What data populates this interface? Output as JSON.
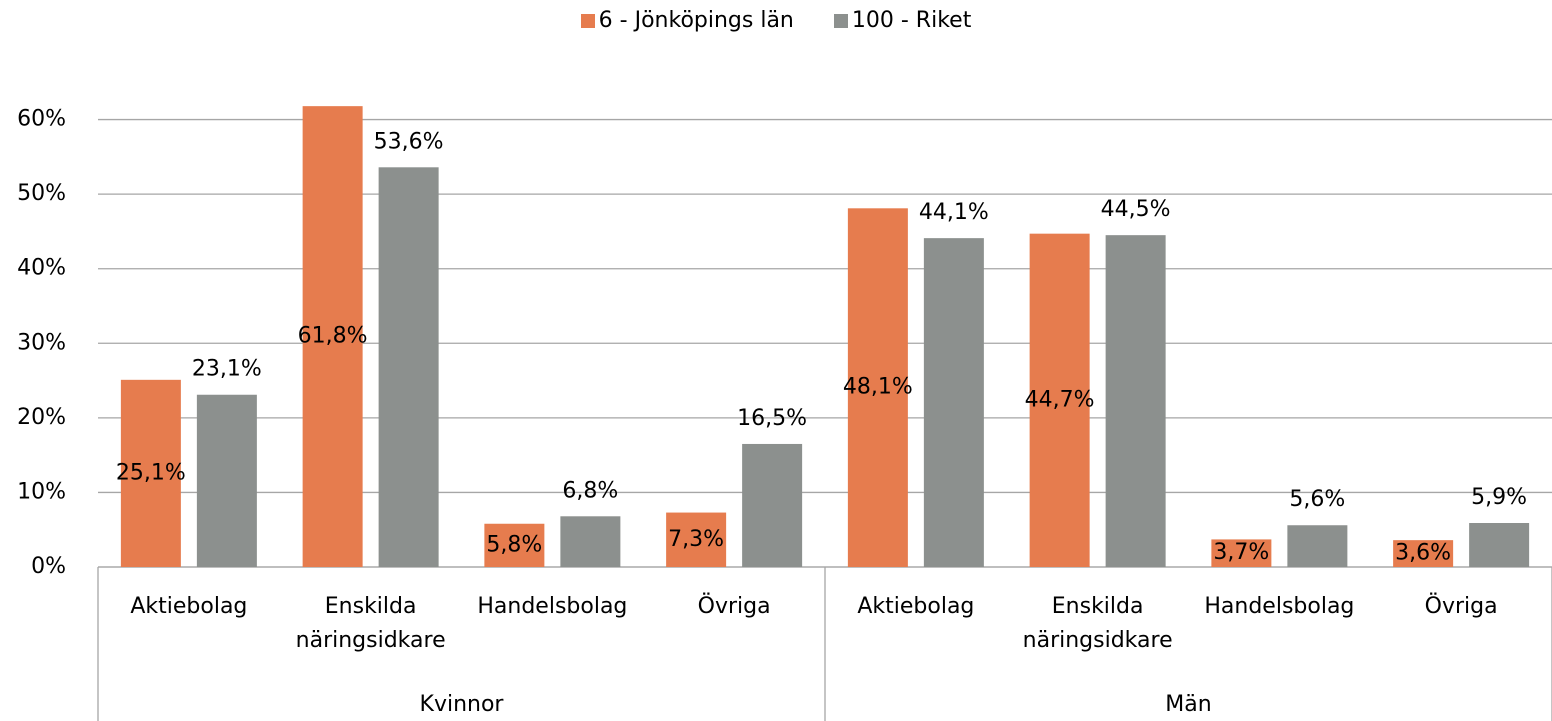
{
  "chart_data": {
    "type": "bar",
    "groups": [
      "Kvinnor",
      "Män"
    ],
    "categories": [
      "Aktiebolag",
      "Enskilda näringsidkare",
      "Handelsbolag",
      "Övriga",
      "Aktiebolag",
      "Enskilda näringsidkare",
      "Handelsbolag",
      "Övriga"
    ],
    "series": [
      {
        "name": "6 - Jönköpings län",
        "color": "#e67c4e",
        "values": [
          25.1,
          61.8,
          5.8,
          7.3,
          48.1,
          44.7,
          3.7,
          3.6
        ],
        "value_labels": [
          "25,1%",
          "61,8%",
          "5,8%",
          "7,3%",
          "48,1%",
          "44,7%",
          "3,7%",
          "3,6%"
        ]
      },
      {
        "name": "100 - Riket",
        "color": "#8c908e",
        "values": [
          23.1,
          53.6,
          6.8,
          16.5,
          44.1,
          44.5,
          5.6,
          5.9
        ],
        "value_labels": [
          "23,1%",
          "53,6%",
          "6,8%",
          "16,5%",
          "44,1%",
          "44,5%",
          "5,6%",
          "5,9%"
        ]
      }
    ],
    "ylim": [
      0,
      70
    ],
    "yticks": [
      {
        "value": 0,
        "label": "0%"
      },
      {
        "value": 10,
        "label": "10%"
      },
      {
        "value": 20,
        "label": "20%"
      },
      {
        "value": 30,
        "label": "30%"
      },
      {
        "value": 40,
        "label": "40%"
      },
      {
        "value": 50,
        "label": "50%"
      },
      {
        "value": 60,
        "label": "60%"
      }
    ],
    "grid": true,
    "legend": "top"
  }
}
